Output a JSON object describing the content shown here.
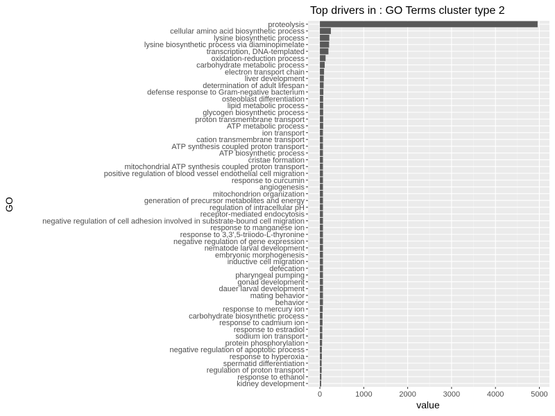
{
  "chart_data": {
    "type": "bar",
    "orientation": "horizontal",
    "title": "Top drivers in  : GO  Terms cluster type 2",
    "xlabel": "value",
    "ylabel": "GO",
    "xlim": [
      -270,
      5230
    ],
    "xticks": [
      0,
      1000,
      2000,
      3000,
      4000,
      5000
    ],
    "xtick_labels": [
      "0",
      "1000",
      "2000",
      "3000",
      "4000",
      "5000"
    ],
    "grid": true,
    "categories": [
      "proteolysis",
      "cellular amino acid biosynthetic process",
      "lysine biosynthetic process",
      "lysine biosynthetic process via diaminopimelate",
      "transcription, DNA-templated",
      "oxidation-reduction process",
      "carbohydrate metabolic process",
      "electron transport chain",
      "liver development",
      "determination of adult lifespan",
      "defense response to Gram-negative bacterium",
      "osteoblast differentiation",
      "lipid metabolic process",
      "glycogen biosynthetic process",
      "proton transmembrane transport",
      "ATP metabolic process",
      "ion transport",
      "cation transmembrane transport",
      "ATP synthesis coupled proton transport",
      "ATP biosynthetic process",
      "cristae formation",
      "mitochondrial ATP synthesis coupled proton transport",
      "positive regulation of blood vessel endothelial cell migration",
      "response to curcumin",
      "angiogenesis",
      "mitochondrion organization",
      "generation of precursor metabolites and energy",
      "regulation of intracellular pH",
      "receptor-mediated endocytosis",
      "negative regulation of cell adhesion involved in substrate-bound cell migration",
      "response to manganese ion",
      "response to 3,3',5-triiodo-L-thyronine",
      "negative regulation of gene expression",
      "nematode larval development",
      "embryonic morphogenesis",
      "inductive cell migration",
      "defecation",
      "pharyngeal pumping",
      "gonad development",
      "dauer larval development",
      "mating behavior",
      "behavior",
      "response to mercury ion",
      "carbohydrate biosynthetic process",
      "response to cadmium ion",
      "response to estradiol",
      "sodium ion transport",
      "protein phosphorylation",
      "negative regulation of apoptotic process",
      "response to hyperoxia",
      "spermatid differentiation",
      "regulation of proton transport",
      "response to ethanol",
      "kidney development"
    ],
    "values": [
      4960,
      250,
      215,
      210,
      195,
      130,
      110,
      95,
      90,
      85,
      80,
      75,
      75,
      75,
      75,
      75,
      70,
      70,
      70,
      70,
      70,
      70,
      70,
      70,
      70,
      70,
      70,
      70,
      70,
      70,
      70,
      70,
      70,
      70,
      70,
      70,
      70,
      70,
      70,
      70,
      70,
      70,
      65,
      60,
      60,
      55,
      55,
      50,
      45,
      45,
      40,
      40,
      35,
      30
    ],
    "colors": {
      "bar": "#595959",
      "panel": "#ebebeb",
      "grid_major": "#ffffff",
      "grid_minor": "#f5f5f5",
      "tick": "#333333",
      "tick_label": "#4d4d4d"
    }
  }
}
